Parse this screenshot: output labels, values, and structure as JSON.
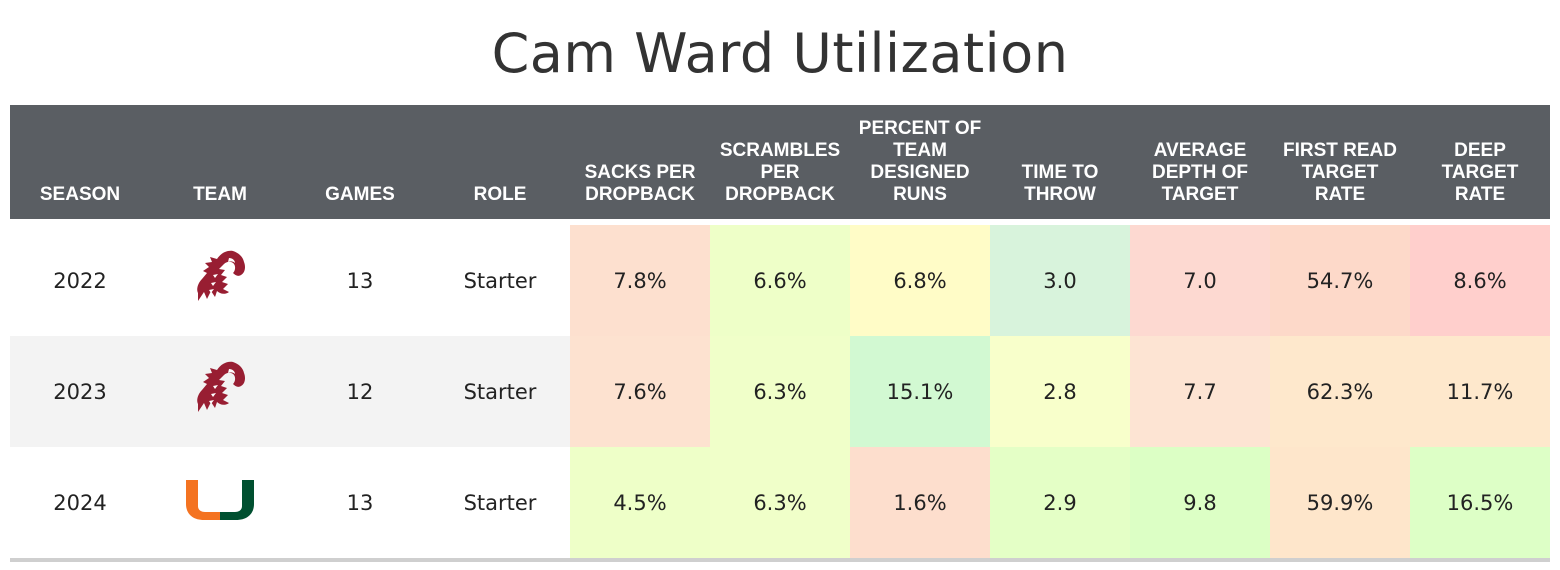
{
  "title": "Cam Ward Utilization",
  "columns": [
    "SEASON",
    "TEAM",
    "GAMES",
    "ROLE",
    "SACKS PER DROPBACK",
    "SCRAMBLES PER DROPBACK",
    "PERCENT OF TEAM DESIGNED RUNS",
    "TIME TO THROW",
    "AVERAGE DEPTH OF TARGET",
    "FIRST READ TARGET RATE",
    "DEEP TARGET RATE"
  ],
  "colors": {
    "header_bg": "#5a5e63",
    "row_alt_bg": "#f3f3f3",
    "wsu_crimson": "#981e32",
    "miami_orange": "#f47321",
    "miami_green": "#005030"
  },
  "chart_data": {
    "type": "table",
    "title": "Cam Ward Utilization",
    "rows": [
      {
        "season": "2022",
        "team_logo": "washington-state-cougar-logo",
        "games": "13",
        "role": "Starter",
        "stats": [
          "7.8%",
          "6.6%",
          "6.8%",
          "3.0",
          "7.0",
          "54.7%",
          "8.6%"
        ],
        "colors": [
          "#fde0cf",
          "#eeffc8",
          "#fffcc7",
          "#d8f3dc",
          "#fdd9d1",
          "#fdd9c9",
          "#ffcfcc"
        ]
      },
      {
        "season": "2023",
        "team_logo": "washington-state-cougar-logo",
        "games": "12",
        "role": "Starter",
        "stats": [
          "7.6%",
          "6.3%",
          "15.1%",
          "2.8",
          "7.7",
          "62.3%",
          "11.7%"
        ],
        "colors": [
          "#fde2d0",
          "#f0ffc9",
          "#d2f9d2",
          "#f8ffcb",
          "#fde4d3",
          "#fee8cc",
          "#fee8cc"
        ]
      },
      {
        "season": "2024",
        "team_logo": "miami-u-logo",
        "games": "13",
        "role": "Starter",
        "stats": [
          "4.5%",
          "6.3%",
          "1.6%",
          "2.9",
          "9.8",
          "59.9%",
          "16.5%"
        ],
        "colors": [
          "#eeffc8",
          "#f0ffc9",
          "#fddecd",
          "#e4ffc6",
          "#dcffc5",
          "#fee6cb",
          "#ddffc6"
        ]
      }
    ]
  }
}
